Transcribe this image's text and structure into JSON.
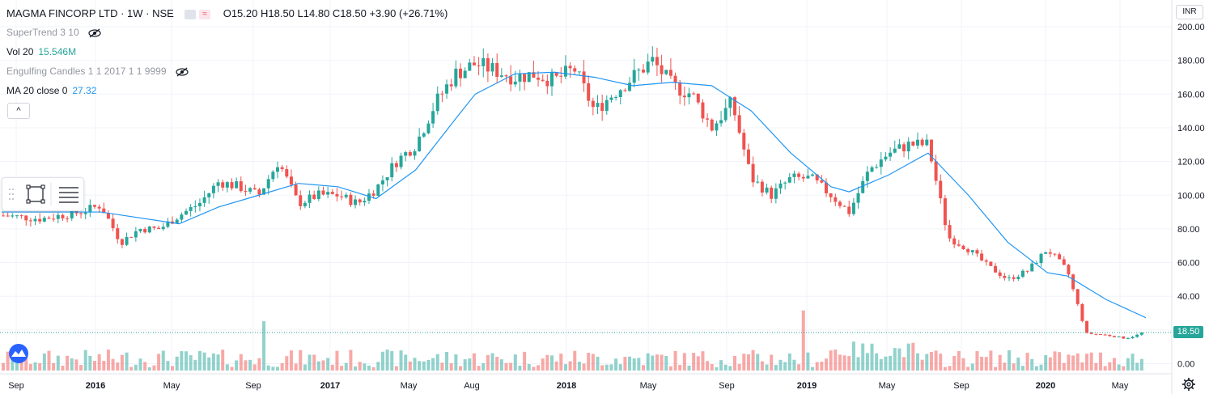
{
  "header": {
    "symbol": "MAGMA FINCORP LTD · 1W · NSE",
    "open": "O15.20",
    "high": "H18.50",
    "low": "L14.80",
    "close": "C18.50",
    "change": "+3.90 (+26.71%)"
  },
  "legend": {
    "supertrend": "SuperTrend 3 10",
    "vol_label": "Vol 20",
    "vol_value": "15.546M",
    "engulfing": "Engulfing Candles 1 1 2017 1 1 9999",
    "ma_label": "MA 20 close 0",
    "ma_value": "27.32",
    "collapse": "^"
  },
  "price_axis": {
    "currency": "INR",
    "last_price": "18.50"
  },
  "colors": {
    "up": "#26a69a",
    "down": "#ef5350",
    "ma": "#2196f3",
    "grid": "#f0f3fa"
  },
  "chart_data": {
    "type": "candlestick",
    "ylim": [
      0,
      200
    ],
    "yticks": [
      "200.00",
      "180.00",
      "160.00",
      "140.00",
      "120.00",
      "100.00",
      "80.00",
      "60.00",
      "40.00",
      "20.00",
      "0.00"
    ],
    "xticks": [
      "Sep",
      "2016",
      "May",
      "Sep",
      "2017",
      "May",
      "Aug",
      "2018",
      "May",
      "Sep",
      "2019",
      "May",
      "Sep",
      "2020",
      "May"
    ],
    "close_path": [
      [
        "2015-08",
        88
      ],
      [
        "2015-10",
        86
      ],
      [
        "2015-12",
        90
      ],
      [
        "2016-01",
        94
      ],
      [
        "2016-02",
        72
      ],
      [
        "2016-03",
        80
      ],
      [
        "2016-04",
        80
      ],
      [
        "2016-05",
        88
      ],
      [
        "2016-06",
        95
      ],
      [
        "2016-07",
        108
      ],
      [
        "2016-08",
        105
      ],
      [
        "2016-09",
        100
      ],
      [
        "2016-10",
        120
      ],
      [
        "2016-11",
        95
      ],
      [
        "2016-12",
        100
      ],
      [
        "2017-01",
        100
      ],
      [
        "2017-02",
        95
      ],
      [
        "2017-03",
        104
      ],
      [
        "2017-04",
        120
      ],
      [
        "2017-05",
        130
      ],
      [
        "2017-06",
        155
      ],
      [
        "2017-07",
        172
      ],
      [
        "2017-08",
        178
      ],
      [
        "2017-09",
        174
      ],
      [
        "2017-10",
        170
      ],
      [
        "2017-11",
        172
      ],
      [
        "2017-12",
        168
      ],
      [
        "2018-01",
        175
      ],
      [
        "2018-02",
        150
      ],
      [
        "2018-03",
        160
      ],
      [
        "2018-04",
        170
      ],
      [
        "2018-05",
        180
      ],
      [
        "2018-06",
        165
      ],
      [
        "2018-07",
        160
      ],
      [
        "2018-08",
        140
      ],
      [
        "2018-09",
        155
      ],
      [
        "2018-10",
        110
      ],
      [
        "2018-11",
        100
      ],
      [
        "2018-12",
        110
      ],
      [
        "2019-01",
        110
      ],
      [
        "2019-02",
        100
      ],
      [
        "2019-03",
        90
      ],
      [
        "2019-04",
        115
      ],
      [
        "2019-05",
        125
      ],
      [
        "2019-06",
        130
      ],
      [
        "2019-07",
        130
      ],
      [
        "2019-08",
        75
      ],
      [
        "2019-09",
        68
      ],
      [
        "2019-10",
        58
      ],
      [
        "2019-11",
        50
      ],
      [
        "2019-12",
        55
      ],
      [
        "2020-01",
        68
      ],
      [
        "2020-02",
        55
      ],
      [
        "2020-03",
        18
      ],
      [
        "2020-04",
        17
      ],
      [
        "2020-05",
        15
      ],
      [
        "2020-06",
        18.5
      ]
    ],
    "ma_path": [
      [
        "2015-08",
        90
      ],
      [
        "2016-01",
        90
      ],
      [
        "2016-05",
        83
      ],
      [
        "2016-07",
        93
      ],
      [
        "2016-09",
        100
      ],
      [
        "2016-11",
        107
      ],
      [
        "2017-01",
        105
      ],
      [
        "2017-03",
        98
      ],
      [
        "2017-05",
        115
      ],
      [
        "2017-07",
        145
      ],
      [
        "2017-08",
        160
      ],
      [
        "2017-10",
        172
      ],
      [
        "2017-12",
        173
      ],
      [
        "2018-02",
        170
      ],
      [
        "2018-04",
        165
      ],
      [
        "2018-06",
        167
      ],
      [
        "2018-08",
        165
      ],
      [
        "2018-10",
        150
      ],
      [
        "2018-12",
        125
      ],
      [
        "2019-02",
        105
      ],
      [
        "2019-03",
        102
      ],
      [
        "2019-05",
        112
      ],
      [
        "2019-07",
        125
      ],
      [
        "2019-09",
        100
      ],
      [
        "2019-11",
        72
      ],
      [
        "2020-01",
        54
      ],
      [
        "2020-02",
        52
      ],
      [
        "2020-04",
        38
      ],
      [
        "2020-06",
        27.3
      ]
    ],
    "last_close": 18.5
  }
}
